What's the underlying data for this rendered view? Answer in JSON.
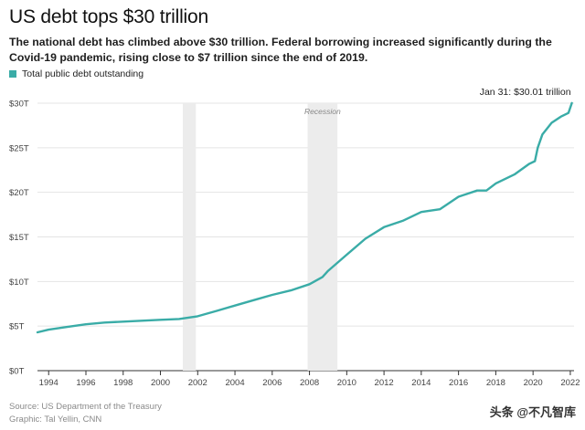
{
  "header": {
    "title": "US debt tops $30 trillion",
    "subtitle": "The national debt has climbed above $30 trillion. Federal borrowing increased significantly during the Covid-19 pandemic, rising close to $7 trillion since the end of 2019."
  },
  "footer": {
    "source": "Source: US Department of the Treasury",
    "graphic": "Graphic: Tal Yellin, CNN",
    "watermark": "头条 @不凡智库"
  },
  "chart_data": {
    "type": "line",
    "title": "US debt tops $30 trillion",
    "xlabel": "",
    "ylabel": "",
    "xlim": [
      1993.4,
      2022.2
    ],
    "ylim": [
      0,
      30
    ],
    "grid": true,
    "legend": "top-left",
    "x_ticks": [
      1994,
      1996,
      1998,
      2000,
      2002,
      2004,
      2006,
      2008,
      2010,
      2012,
      2014,
      2016,
      2018,
      2020,
      2022
    ],
    "x_tick_labels": [
      "1994",
      "1996",
      "1998",
      "2000",
      "2002",
      "2004",
      "2006",
      "2008",
      "2010",
      "2012",
      "2014",
      "2016",
      "2018",
      "2020",
      "2022"
    ],
    "y_ticks": [
      0,
      5,
      10,
      15,
      20,
      25,
      30
    ],
    "y_tick_labels": [
      "$0T",
      "$5T",
      "$10T",
      "$15T",
      "$20T",
      "$25T",
      "$30T"
    ],
    "series": [
      {
        "name": "Total public debt outstanding",
        "color": "#3aaca7",
        "x": [
          1993.4,
          1994.0,
          1995.0,
          1996.0,
          1997.0,
          1998.0,
          1999.0,
          2000.0,
          2001.0,
          2002.0,
          2003.0,
          2004.0,
          2005.0,
          2006.0,
          2007.0,
          2008.0,
          2008.7,
          2009.0,
          2010.0,
          2011.0,
          2012.0,
          2013.0,
          2014.0,
          2015.0,
          2016.0,
          2017.0,
          2017.5,
          2018.0,
          2019.0,
          2019.8,
          2020.1,
          2020.25,
          2020.5,
          2021.0,
          2021.5,
          2021.9,
          2022.08
        ],
        "values": [
          4.3,
          4.6,
          4.9,
          5.2,
          5.4,
          5.5,
          5.6,
          5.7,
          5.8,
          6.1,
          6.7,
          7.3,
          7.9,
          8.5,
          9.0,
          9.7,
          10.5,
          11.2,
          13.0,
          14.8,
          16.1,
          16.8,
          17.8,
          18.1,
          19.5,
          20.2,
          20.2,
          21.0,
          22.0,
          23.2,
          23.5,
          25.0,
          26.5,
          27.8,
          28.5,
          28.9,
          30.01
        ]
      }
    ],
    "shaded_regions": [
      {
        "x_start": 2001.2,
        "x_end": 2001.9,
        "label": ""
      },
      {
        "x_start": 2007.9,
        "x_end": 2009.5,
        "label": "Recession"
      }
    ],
    "annotations": [
      {
        "x": 2022.08,
        "y": 30.01,
        "text": "Jan 31: $30.01 trillion"
      }
    ]
  }
}
